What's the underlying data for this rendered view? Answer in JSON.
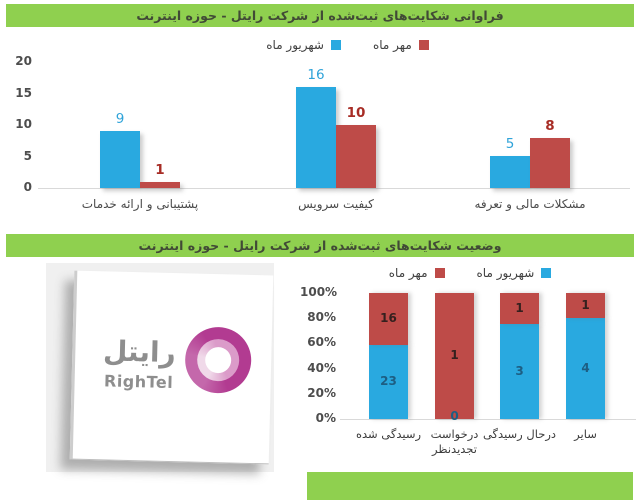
{
  "page": {
    "background": "#FFFFFF"
  },
  "colors": {
    "header_bg": "#8FD04F",
    "header_text": "#414A36",
    "series_blue": "#29A9E0",
    "series_red": "#BE4B48",
    "value_label_blue": "#2FA3D9",
    "value_label_red": "#A72C25",
    "stacked_label_blue": "#1D5E83",
    "stacked_label_red": "#34201E",
    "axis_text": "#4D4D4D",
    "baseline": "#D9D9D9"
  },
  "logo": {
    "name_fa": "رایتل",
    "name_en": "RighTel",
    "ring_outer_color": "#B23B91",
    "ring_inner_color": "#DB9BC9",
    "text_color": "#8E8E8E",
    "panel_bg": "#F0F0F0"
  },
  "chart_data": [
    {
      "type": "bar",
      "title": "فراوانی شکایت‌های ثبت‌شده از شرکت رایتل - حوزه اینترنت",
      "categories": [
        "پشتیبانی و ارائه خدمات",
        "کیفیت سرویس",
        "مشکلات مالی و تعرفه"
      ],
      "series": [
        {
          "name": "شهریور ماه",
          "color": "#29A9E0",
          "values": [
            9,
            16,
            5
          ]
        },
        {
          "name": "مهر ماه",
          "color": "#BE4B48",
          "values": [
            1,
            10,
            8
          ]
        }
      ],
      "ylim": [
        0,
        20
      ],
      "yticks": [
        0,
        5,
        10,
        15,
        20
      ],
      "legend": [
        {
          "label": "شهریور ماه",
          "color": "#29A9E0"
        },
        {
          "label": "مهر ماه",
          "color": "#BE4B48"
        }
      ],
      "legend_position": "top",
      "grid": false,
      "xlabel": "",
      "ylabel": ""
    },
    {
      "type": "stacked-bar-100",
      "title": "وضعیت شکایت‌های ثبت‌شده از شرکت رایتل - حوزه اینترنت",
      "categories": [
        "رسیدگی شده",
        "درخواست تجدیدنظر",
        "درحال رسیدگی",
        "سایر"
      ],
      "categories_lines": [
        [
          "رسیدگی شده"
        ],
        [
          "درخواست",
          "تجدیدنظر"
        ],
        [
          "درحال رسیدگی"
        ],
        [
          "سایر"
        ]
      ],
      "series": [
        {
          "name": "شهریور ماه",
          "color": "#29A9E0",
          "values": [
            23,
            0,
            3,
            4
          ]
        },
        {
          "name": "مهر ماه",
          "color": "#BE4B48",
          "values": [
            16,
            1,
            1,
            1
          ]
        }
      ],
      "yticks": [
        "0%",
        "20%",
        "40%",
        "60%",
        "80%",
        "100%"
      ],
      "legend": [
        {
          "label": "مهر ماه",
          "color": "#BE4B48"
        },
        {
          "label": "شهریور ماه",
          "color": "#29A9E0"
        }
      ],
      "legend_position": "top",
      "grid": false,
      "xlabel": "",
      "ylabel": ""
    }
  ]
}
